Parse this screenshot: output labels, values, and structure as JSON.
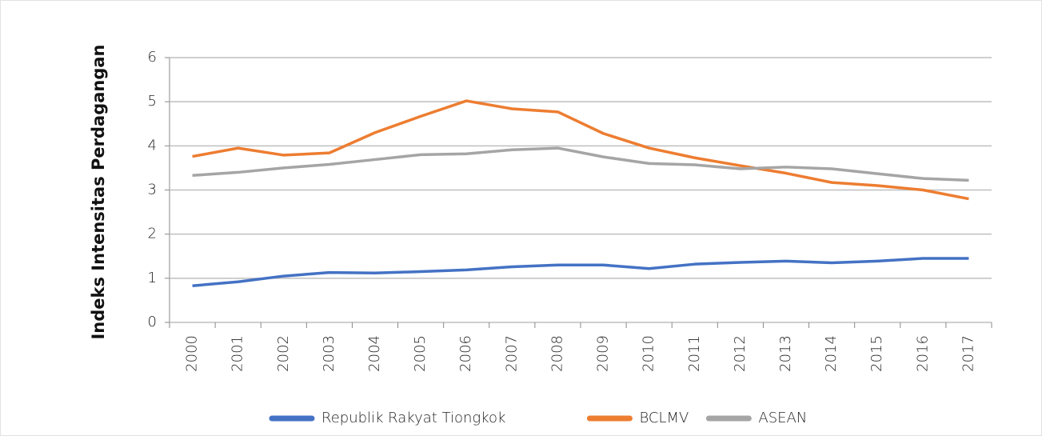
{
  "chart_data": {
    "type": "line",
    "ylabel": "Indeks Intensitas Perdagangan",
    "categories": [
      "2000",
      "2001",
      "2002",
      "2003",
      "2004",
      "2005",
      "2006",
      "2007",
      "2008",
      "2009",
      "2010",
      "2011",
      "2012",
      "2013",
      "2014",
      "2015",
      "2016",
      "2017"
    ],
    "series": [
      {
        "name": "Republik Rakyat Tiongkok",
        "color": "#4472c4",
        "values": [
          0.83,
          0.92,
          1.05,
          1.13,
          1.12,
          1.15,
          1.19,
          1.26,
          1.3,
          1.3,
          1.22,
          1.32,
          1.36,
          1.39,
          1.35,
          1.39,
          1.45,
          1.45
        ]
      },
      {
        "name": "BCLMV",
        "color": "#ed7d31",
        "values": [
          3.76,
          3.95,
          3.79,
          3.84,
          4.3,
          4.67,
          5.02,
          4.84,
          4.77,
          4.28,
          3.95,
          3.73,
          3.55,
          3.38,
          3.17,
          3.1,
          3.0,
          2.8
        ]
      },
      {
        "name": "ASEAN",
        "color": "#a5a5a5",
        "values": [
          3.33,
          3.4,
          3.5,
          3.58,
          3.69,
          3.8,
          3.82,
          3.91,
          3.95,
          3.75,
          3.6,
          3.57,
          3.48,
          3.52,
          3.48,
          3.37,
          3.26,
          3.22
        ]
      }
    ],
    "ylim": [
      0,
      6
    ],
    "yticks": [
      0,
      1,
      2,
      3,
      4,
      5,
      6
    ],
    "grid": true,
    "legend": "bottom"
  }
}
